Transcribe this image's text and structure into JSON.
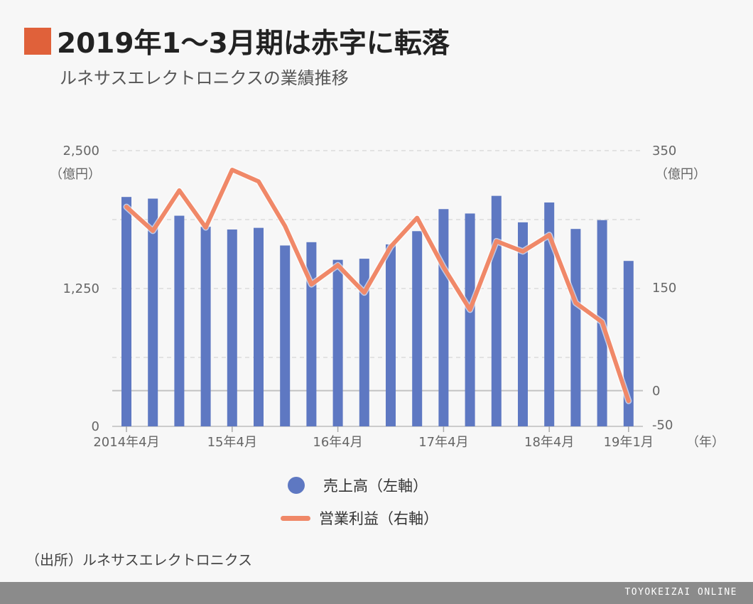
{
  "header": {
    "title": "2019年1〜3月期は赤字に転落",
    "subtitle": "ルネサスエレクトロニクスの業績推移"
  },
  "colors": {
    "title_square": "#e0613a",
    "bar": "#5e78c2",
    "line": "#f08868",
    "footer": "#8b8b8b"
  },
  "chart_data": {
    "type": "bar+line",
    "categories": [
      "2014-04",
      "2014-07",
      "2014-10",
      "2015-01",
      "2015-04",
      "2015-07",
      "2015-10",
      "2016-01",
      "2016-04",
      "2016-07",
      "2016-10",
      "2017-01",
      "2017-04",
      "2017-07",
      "2017-10",
      "2018-01",
      "2018-04",
      "2018-07",
      "2018-10",
      "2019-01"
    ],
    "x_tick_labels": [
      {
        "index": 0,
        "label": "2014年4月"
      },
      {
        "index": 4,
        "label": "15年4月"
      },
      {
        "index": 8,
        "label": "16年4月"
      },
      {
        "index": 12,
        "label": "17年4月"
      },
      {
        "index": 16,
        "label": "18年4月"
      },
      {
        "index": 19,
        "label": "19年1月"
      }
    ],
    "x_unit": "（年）",
    "left_axis": {
      "ticks": [
        "2,500",
        "1,250",
        "0"
      ],
      "unit": "（億円）",
      "ylim": [
        0,
        2500
      ]
    },
    "right_axis": {
      "ticks": [
        "350",
        "150",
        "0",
        "-50"
      ],
      "unit": "（億円）",
      "ylim": [
        -50,
        350
      ]
    },
    "series": [
      {
        "name": "売上高（左軸）",
        "type": "bar",
        "axis": "left",
        "values": [
          2080,
          2065,
          1910,
          1810,
          1785,
          1800,
          1640,
          1670,
          1510,
          1520,
          1650,
          1770,
          1970,
          1930,
          2090,
          1850,
          2030,
          1790,
          1870,
          1500
        ]
      },
      {
        "name": "営業利益（右軸）",
        "type": "line",
        "axis": "right",
        "values": [
          268,
          233,
          292,
          238,
          322,
          305,
          240,
          155,
          183,
          143,
          210,
          252,
          180,
          118,
          218,
          203,
          227,
          128,
          100,
          -15
        ]
      }
    ],
    "grid": "horizontal-dashed"
  },
  "source": "（出所）ルネサスエレクトロニクス",
  "footer": {
    "brand": "TOYOKEIZAI ONLINE"
  }
}
